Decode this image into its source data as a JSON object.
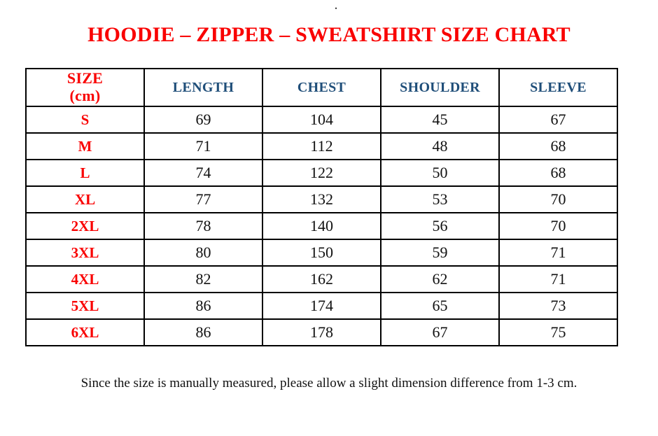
{
  "page": {
    "top_mark": ".",
    "title": "HOODIE – ZIPPER – SWEATSHIRT SIZE CHART",
    "footer_note": "Since the size is manually measured, please allow a slight dimension difference from 1-3 cm."
  },
  "colors": {
    "title_red": "#f90000",
    "header_blue": "#1f4e79",
    "body_text": "#111111",
    "border_color": "#000000"
  },
  "table": {
    "header": {
      "size_label": "SIZE",
      "size_unit": "(cm)",
      "columns": [
        "LENGTH",
        "CHEST",
        "SHOULDER",
        "SLEEVE"
      ]
    },
    "rows": [
      {
        "size": "S",
        "length": "69",
        "chest": "104",
        "shoulder": "45",
        "sleeve": "67"
      },
      {
        "size": "M",
        "length": "71",
        "chest": "112",
        "shoulder": "48",
        "sleeve": "68"
      },
      {
        "size": "L",
        "length": "74",
        "chest": "122",
        "shoulder": "50",
        "sleeve": "68"
      },
      {
        "size": "XL",
        "length": "77",
        "chest": "132",
        "shoulder": "53",
        "sleeve": "70"
      },
      {
        "size": "2XL",
        "length": "78",
        "chest": "140",
        "shoulder": "56",
        "sleeve": "70"
      },
      {
        "size": "3XL",
        "length": "80",
        "chest": "150",
        "shoulder": "59",
        "sleeve": "71"
      },
      {
        "size": "4XL",
        "length": "82",
        "chest": "162",
        "shoulder": "62",
        "sleeve": "71"
      },
      {
        "size": "5XL",
        "length": "86",
        "chest": "174",
        "shoulder": "65",
        "sleeve": "73"
      },
      {
        "size": "6XL",
        "length": "86",
        "chest": "178",
        "shoulder": "67",
        "sleeve": "75"
      }
    ]
  }
}
